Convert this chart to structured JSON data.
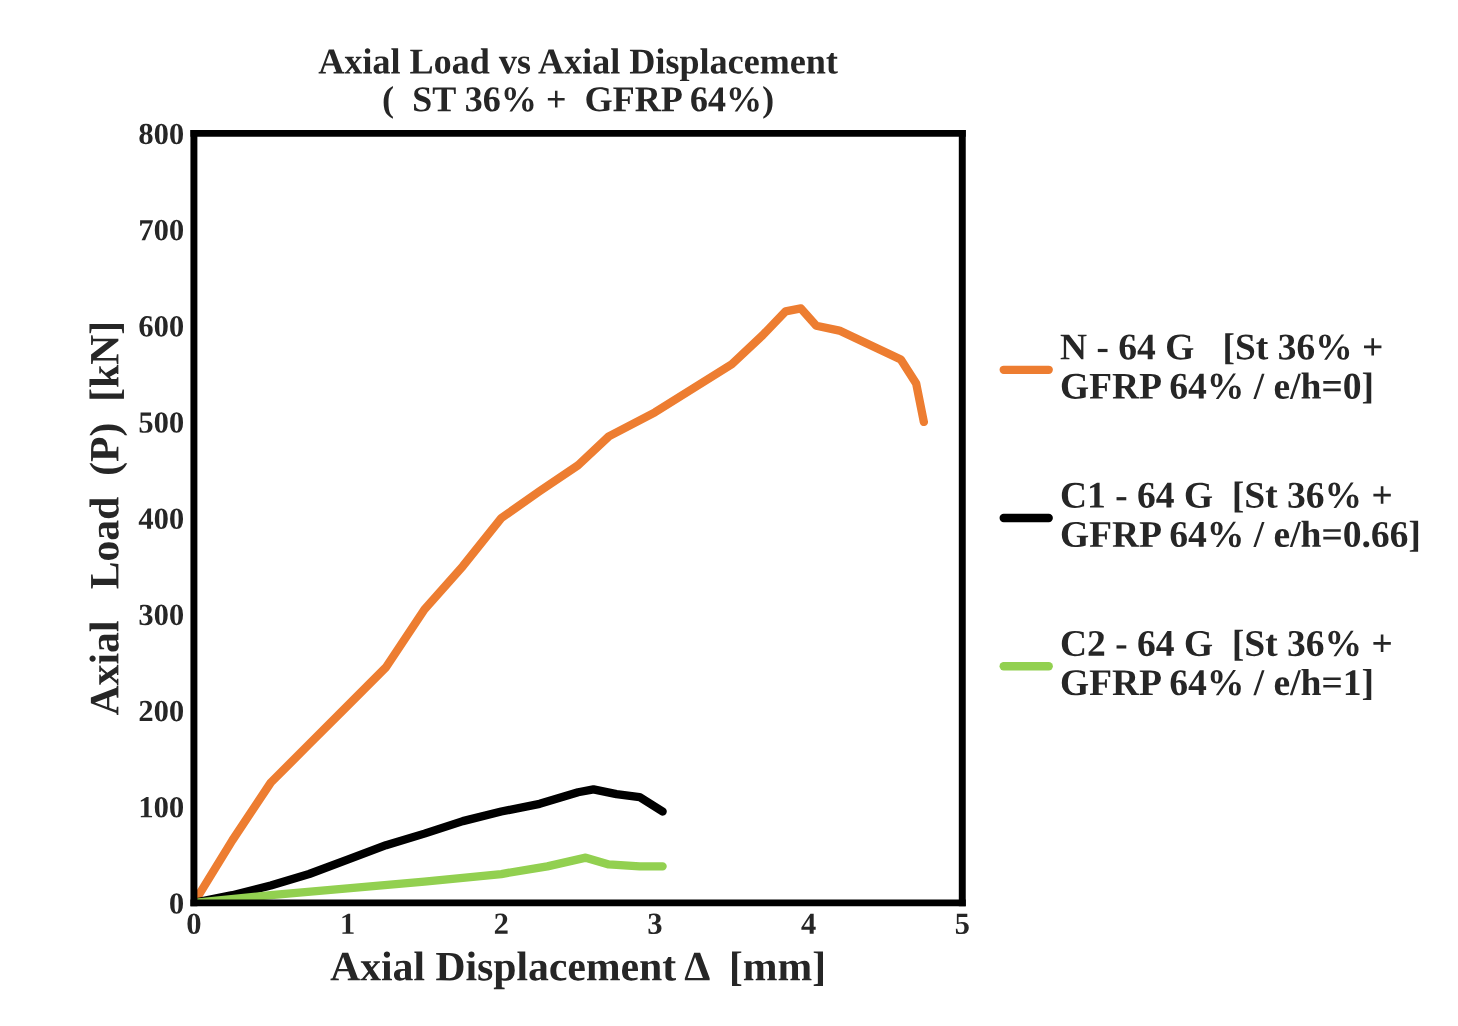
{
  "chart_data": {
    "type": "line",
    "title": "Axial Load vs Axial Displacement\n(  ST 36% +  GFRP 64%)",
    "xlabel": "Axial Displacement Δ  [mm]",
    "ylabel": "Axial   Load  (P)  [kN]",
    "xlim": [
      0,
      5
    ],
    "ylim": [
      0,
      800
    ],
    "xticks": [
      0,
      1,
      2,
      3,
      4,
      5
    ],
    "yticks": [
      0,
      100,
      200,
      300,
      400,
      500,
      600,
      700,
      800
    ],
    "grid": false,
    "legend": "right",
    "marker": "none",
    "line_style": "solid",
    "series": [
      {
        "name": "N - 64 G   [St 36% +\nGFRP 64% / e/h=0]",
        "color": "#ed7d31",
        "x": [
          0,
          0.25,
          0.5,
          0.75,
          1,
          1.25,
          1.5,
          1.75,
          2,
          2.25,
          2.5,
          2.7,
          3,
          3.25,
          3.5,
          3.7,
          3.85,
          3.95,
          4.05,
          4.2,
          4.4,
          4.6,
          4.7,
          4.75
        ],
        "values": [
          0,
          65,
          125,
          165,
          205,
          245,
          305,
          350,
          400,
          428,
          455,
          485,
          510,
          535,
          560,
          590,
          615,
          618,
          600,
          595,
          580,
          565,
          540,
          500
        ]
      },
      {
        "name": "C1 - 64 G  [St 36% +\nGFRP 64% / e/h=0.66]",
        "color": "#000000",
        "x": [
          0,
          0.25,
          0.5,
          0.75,
          1,
          1.25,
          1.5,
          1.75,
          2,
          2.25,
          2.5,
          2.6,
          2.75,
          2.9,
          3.05
        ],
        "values": [
          0,
          8,
          18,
          30,
          45,
          60,
          72,
          85,
          95,
          103,
          115,
          118,
          113,
          110,
          95
        ]
      },
      {
        "name": "C2 - 64 G  [St 36% +\nGFRP 64% / e/h=1]",
        "color": "#92d050",
        "x": [
          0,
          0.5,
          1,
          1.5,
          2,
          2.3,
          2.55,
          2.7,
          2.9,
          3.05
        ],
        "values": [
          0,
          8,
          15,
          22,
          30,
          38,
          47,
          40,
          38,
          38
        ]
      }
    ]
  }
}
